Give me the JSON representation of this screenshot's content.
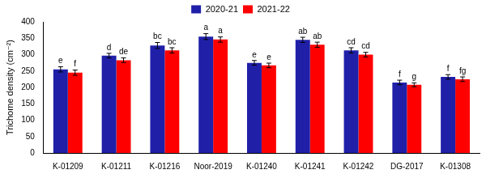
{
  "chart_data": {
    "type": "bar",
    "y_label": "Trichome density (cm⁻²)",
    "categories": [
      "K-01209",
      "K-01211",
      "K-01216",
      "Noor-2019",
      "K-01240",
      "K-01241",
      "K-01242",
      "DG-2017",
      "K-01308"
    ],
    "series": [
      {
        "name": "2020-21",
        "color": "#1f1fa8",
        "values": [
          255,
          297,
          328,
          355,
          275,
          345,
          313,
          215,
          232
        ],
        "errors": [
          8,
          7,
          9,
          9,
          7,
          8,
          8,
          7,
          7
        ],
        "annotations": [
          "e",
          "d",
          "bc",
          "a",
          "e",
          "ab",
          "cd",
          "f",
          "f"
        ]
      },
      {
        "name": "2021-22",
        "color": "#ff0000",
        "values": [
          245,
          283,
          313,
          346,
          267,
          330,
          300,
          208,
          225
        ],
        "errors": [
          8,
          7,
          8,
          8,
          7,
          8,
          7,
          6,
          7
        ],
        "annotations": [
          "f",
          "de",
          "bc",
          "a",
          "e",
          "ab",
          "cd",
          "g",
          "fg"
        ]
      }
    ],
    "ylim": [
      0,
      400
    ],
    "yticks": [
      0,
      50,
      100,
      150,
      200,
      250,
      300,
      350,
      400
    ],
    "grid": false,
    "legend": "top"
  }
}
